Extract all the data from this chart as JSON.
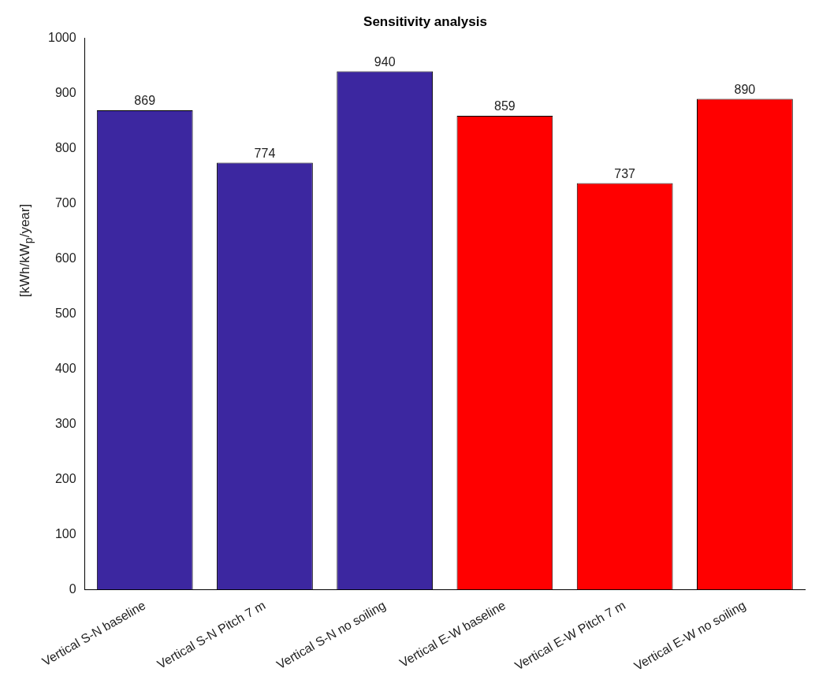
{
  "chart_data": {
    "type": "bar",
    "title": "Sensitivity analysis",
    "ylabel": "[kWh/kW$_{p}$/year]",
    "categories": [
      "Vertical S-N baseline",
      "Vertical S-N Pitch 7 m",
      "Vertical S-N no soiling",
      "Vertical E-W baseline",
      "Vertical E-W Pitch 7 m",
      "Vertical E-W no soiling"
    ],
    "values": [
      869,
      774,
      940,
      859,
      737,
      890
    ],
    "colors": [
      "#3c27a0",
      "#3c27a0",
      "#3c27a0",
      "#ff0000",
      "#ff0000",
      "#ff0000"
    ],
    "ylim": [
      0,
      1000
    ],
    "yticks": [
      0,
      100,
      200,
      300,
      400,
      500,
      600,
      700,
      800,
      900,
      1000
    ],
    "data_labels": true,
    "grid": false,
    "legend": false
  }
}
